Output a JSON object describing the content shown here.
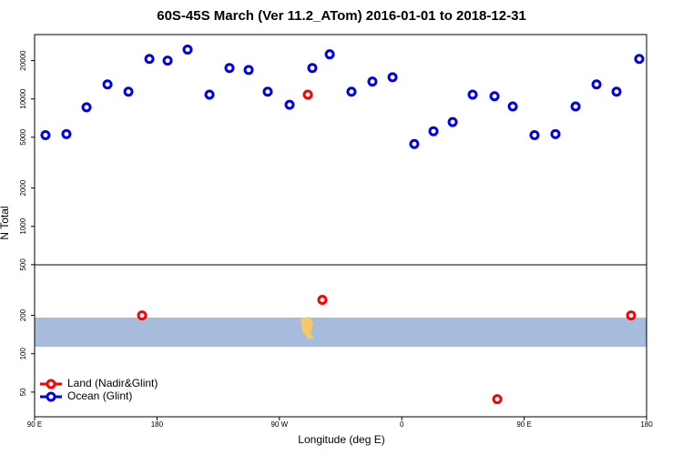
{
  "chart_data": {
    "type": "scatter",
    "title": "60S-45S March (Ver 11.2_ATom)   2016-01-01 to 2018-12-31",
    "x_label": "Longitude (deg E)",
    "y_label": "N Total",
    "xlim": [
      90,
      540
    ],
    "xticks": [
      {
        "value": 90,
        "label": "90 E"
      },
      {
        "value": 180,
        "label": "180"
      },
      {
        "value": 270,
        "label": "90 W"
      },
      {
        "value": 360,
        "label": "0"
      },
      {
        "value": 450,
        "label": "90 E"
      },
      {
        "value": 540,
        "label": "180"
      }
    ],
    "ylim": [
      32,
      32000
    ],
    "log_y": true,
    "yticks": [
      50,
      100,
      200,
      500,
      1000,
      2000,
      5000,
      10000,
      20000
    ],
    "legend": "lower left",
    "series": [
      {
        "name": "Land (Nadir&Glint)",
        "color": "#ff0000",
        "x": [
          169,
          290.9,
          301.6,
          430.2,
          528.6
        ],
        "values": [
          200,
          10800,
          265,
          44,
          200
        ]
      },
      {
        "name": "Ocean (Glint)",
        "color": "#0000ee",
        "x": [
          98,
          113.4,
          128.2,
          143.6,
          159,
          174.4,
          187.8,
          202.5,
          218.6,
          233.3,
          247.4,
          261.4,
          277.5,
          294.2,
          307,
          323,
          338.4,
          353.2,
          369.2,
          383.3,
          397.4,
          412.1,
          428.2,
          441.6,
          457.6,
          473,
          487.8,
          503.2,
          517.9,
          534.6
        ],
        "values": [
          5200,
          5300,
          8600,
          13000,
          11400,
          20600,
          20000,
          24400,
          10800,
          17500,
          16900,
          11400,
          9000,
          17500,
          22400,
          11400,
          13700,
          14800,
          4430,
          5580,
          6590,
          10800,
          10500,
          8730,
          5200,
          5300,
          8730,
          13000,
          11400,
          20600
        ]
      }
    ]
  }
}
